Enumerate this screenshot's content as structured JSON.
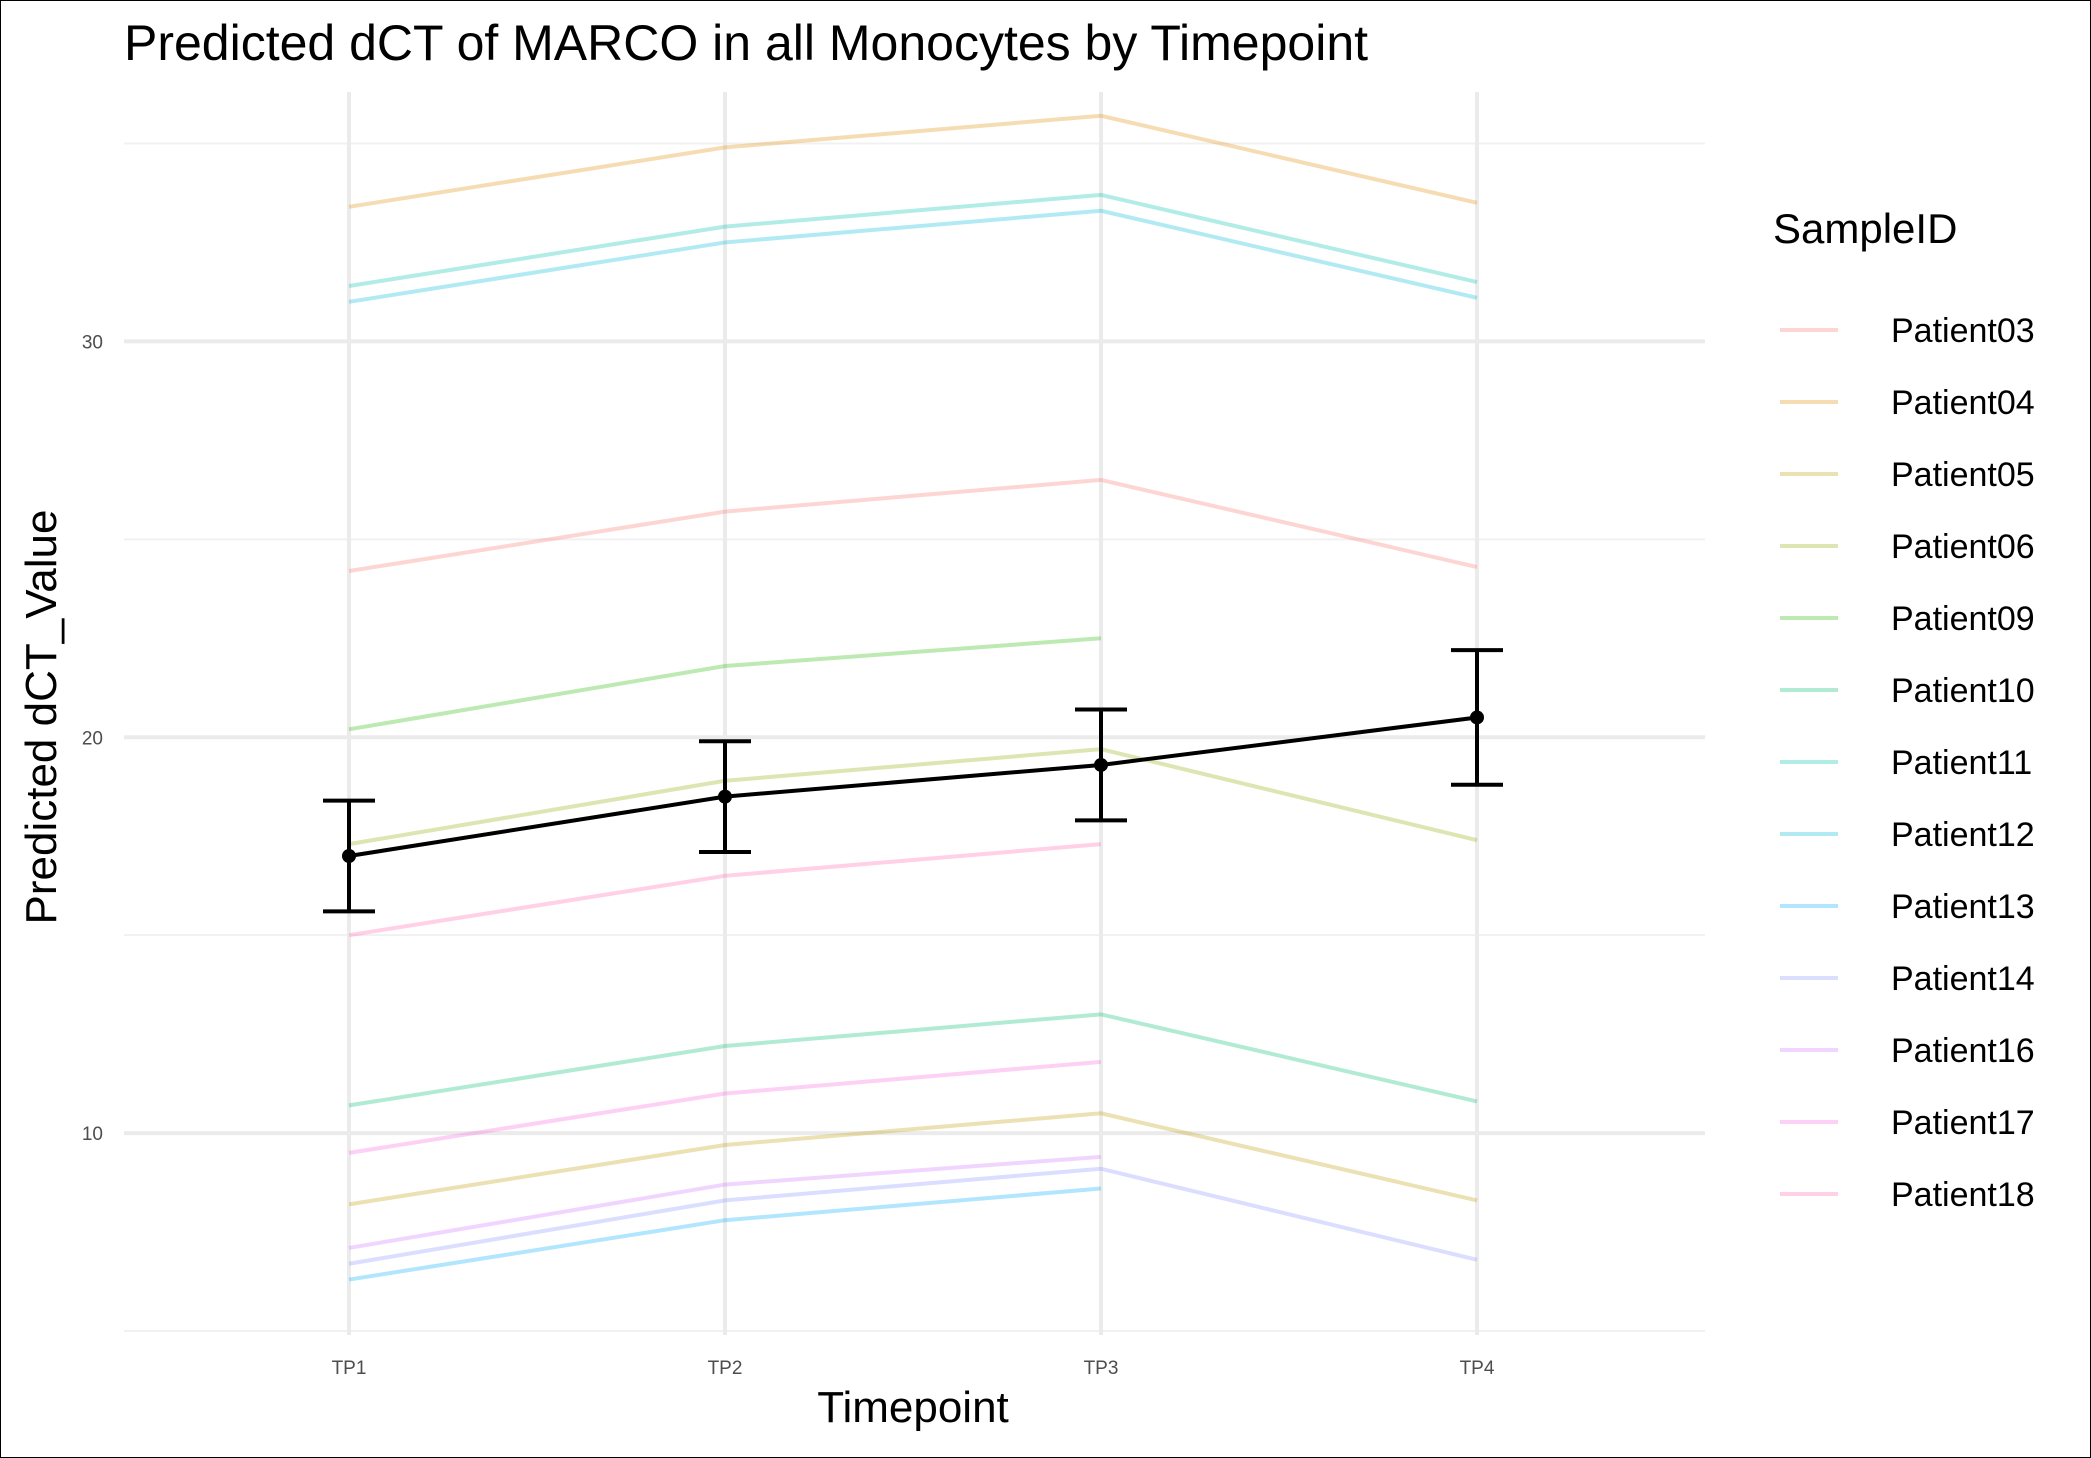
{
  "chart_data": {
    "type": "line",
    "title": "Predicted dCT of  MARCO in  all  Monocytes by Timepoint",
    "xlabel": "Timepoint",
    "ylabel": "Predicted dCT_Value",
    "categories": [
      "TP1",
      "TP2",
      "TP3",
      "TP4"
    ],
    "ylim": [
      4.9,
      36.3
    ],
    "yticks": [
      10,
      20,
      30
    ],
    "grid": true,
    "legend": {
      "title": "SampleID",
      "position": "right"
    },
    "series": [
      {
        "name": "Patient03",
        "color": "#F8766D",
        "values": [
          24.2,
          25.7,
          26.5,
          24.3
        ]
      },
      {
        "name": "Patient04",
        "color": "#E18A00",
        "values": [
          33.4,
          34.9,
          35.7,
          33.5
        ]
      },
      {
        "name": "Patient05",
        "color": "#BE9C00",
        "values": [
          8.2,
          9.7,
          10.5,
          8.3
        ]
      },
      {
        "name": "Patient06",
        "color": "#8CAB00",
        "values": [
          17.3,
          18.9,
          19.7,
          17.4
        ]
      },
      {
        "name": "Patient09",
        "color": "#24B700",
        "values": [
          20.2,
          21.8,
          22.5,
          null
        ]
      },
      {
        "name": "Patient10",
        "color": "#00BE70",
        "values": [
          10.7,
          12.2,
          13.0,
          10.8
        ]
      },
      {
        "name": "Patient11",
        "color": "#00C1AB",
        "values": [
          31.4,
          32.9,
          33.7,
          31.5
        ]
      },
      {
        "name": "Patient12",
        "color": "#00BBDA",
        "values": [
          31.0,
          32.5,
          33.3,
          31.1
        ]
      },
      {
        "name": "Patient13",
        "color": "#00ACFC",
        "values": [
          6.3,
          7.8,
          8.6,
          null
        ]
      },
      {
        "name": "Patient14",
        "color": "#8B93FF",
        "values": [
          6.7,
          8.3,
          9.1,
          6.8
        ]
      },
      {
        "name": "Patient16",
        "color": "#D575FE",
        "values": [
          7.1,
          8.7,
          9.4,
          null
        ]
      },
      {
        "name": "Patient17",
        "color": "#F962DD",
        "values": [
          9.5,
          11.0,
          11.8,
          null
        ]
      },
      {
        "name": "Patient18",
        "color": "#FF65AC",
        "values": [
          15.0,
          16.5,
          17.3,
          null
        ]
      }
    ],
    "mean": {
      "values": [
        17.0,
        18.5,
        19.3,
        20.5
      ],
      "lower": [
        15.6,
        17.1,
        17.9,
        18.8
      ],
      "upper": [
        18.4,
        19.9,
        20.7,
        22.2
      ],
      "color": "#000000"
    }
  }
}
